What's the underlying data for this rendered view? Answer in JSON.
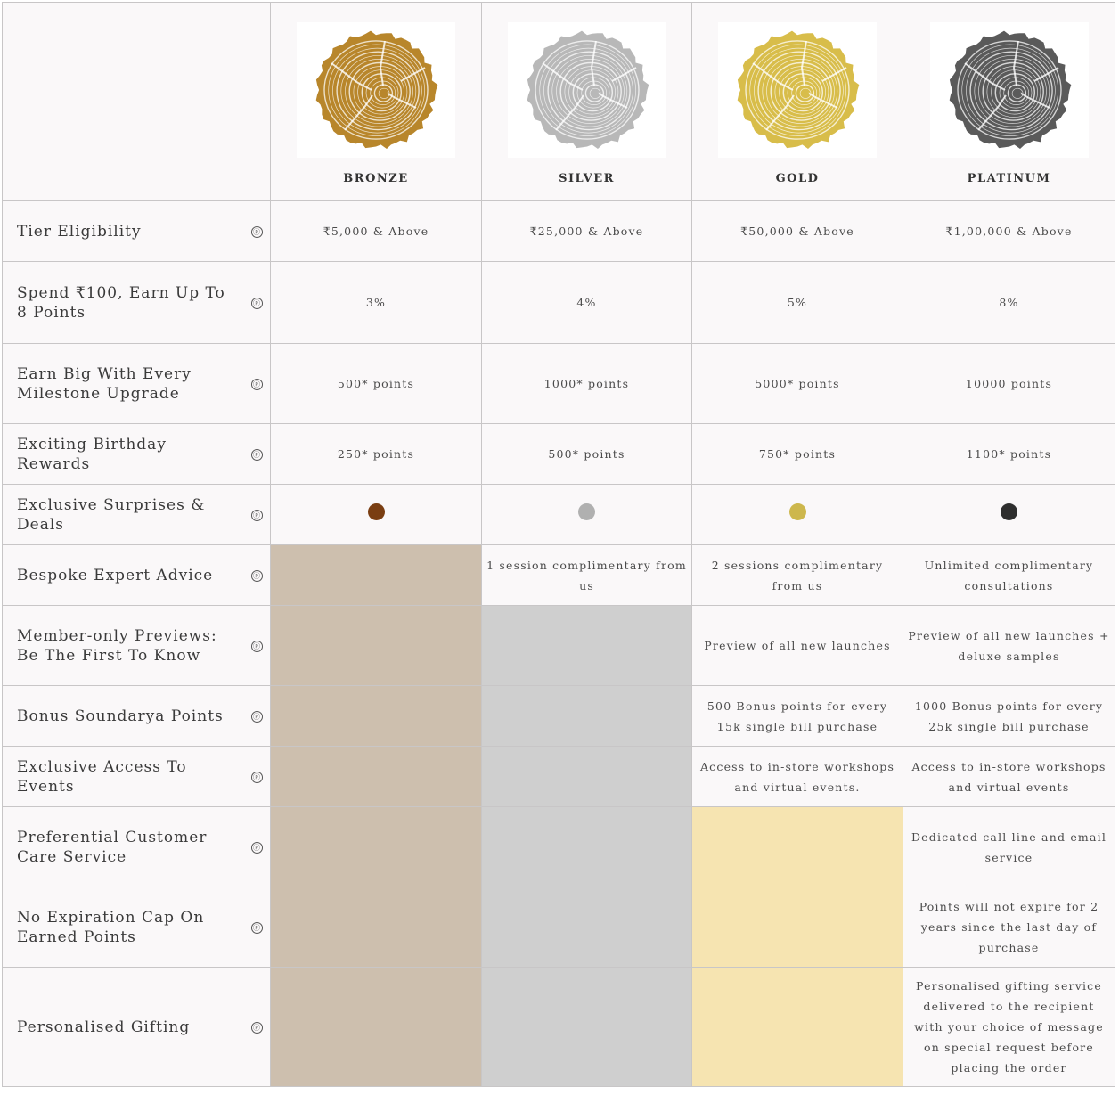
{
  "tiers": [
    {
      "name": "BRONZE",
      "color": "#b8862b",
      "dot_color": "#7a3e12",
      "badge_icon": "tree-ring-bronze-icon"
    },
    {
      "name": "SILVER",
      "color": "#b8b8b8",
      "dot_color": "#b0b0b0",
      "badge_icon": "tree-ring-silver-icon"
    },
    {
      "name": "GOLD",
      "color": "#d8bd4a",
      "dot_color": "#cdb74d",
      "badge_icon": "tree-ring-gold-icon"
    },
    {
      "name": "PLATINUM",
      "color": "#5a5a5a",
      "dot_color": "#2e2e2e",
      "badge_icon": "tree-ring-platinum-icon"
    }
  ],
  "help_icon": "ⓟ",
  "rows": [
    {
      "feature": "Tier Eligibility",
      "values": [
        "₹5,000 & Above",
        "₹25,000 & Above",
        "₹50,000 & Above",
        "₹1,00,000 & Above"
      ]
    },
    {
      "feature": "Spend ₹100, Earn Up To 8 Points",
      "values": [
        "3%",
        "4%",
        "5%",
        "8%"
      ]
    },
    {
      "feature": "Earn Big With Every Milestone Upgrade",
      "values": [
        "500* points",
        "1000* points",
        "5000* points",
        "10000 points"
      ]
    },
    {
      "feature": "Exciting Birthday Rewards",
      "values": [
        "250* points",
        "500* points",
        "750* points",
        "1100* points"
      ]
    },
    {
      "feature": "Exclusive Surprises & Deals",
      "values": [
        "dot",
        "dot",
        "dot",
        "dot"
      ]
    },
    {
      "feature": "Bespoke Expert Advice",
      "values": [
        null,
        "1 session complimentary from us",
        "2 sessions complimentary from us",
        "Unlimited complimentary consultations"
      ]
    },
    {
      "feature": "Member-only Previews: Be The First To Know",
      "values": [
        null,
        null,
        "Preview of all new launches",
        "Preview of all new launches + deluxe samples"
      ]
    },
    {
      "feature": "Bonus Soundarya Points",
      "values": [
        null,
        null,
        "500 Bonus points for every 15k single bill purchase",
        "1000 Bonus points for every 25k single bill purchase"
      ]
    },
    {
      "feature": "Exclusive Access To Events",
      "values": [
        null,
        null,
        "Access to in-store workshops and virtual events.",
        "Access to in-store workshops and virtual events"
      ]
    },
    {
      "feature": "Preferential Customer Care Service",
      "values": [
        null,
        null,
        null,
        "Dedicated call line and email service"
      ]
    },
    {
      "feature": "No Expiration Cap On Earned Points",
      "values": [
        null,
        null,
        null,
        "Points will not expire for 2 years since the last day of purchase"
      ]
    },
    {
      "feature": "Personalised Gifting",
      "values": [
        null,
        null,
        null,
        "Personalised gifting service delivered to the recipient with your choice of message on special request before placing the order"
      ]
    }
  ]
}
